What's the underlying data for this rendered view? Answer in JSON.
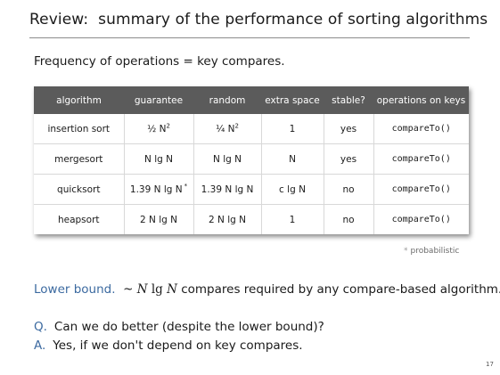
{
  "title": "Review:  summary of the performance of sorting algorithms",
  "intro": "Frequency of operations = key compares.",
  "table": {
    "headers": [
      "algorithm",
      "guarantee",
      "random",
      "extra space",
      "stable?",
      "operations on keys"
    ],
    "rows": [
      [
        "insertion sort",
        "½ N",
        "¼ N",
        "1",
        "yes",
        "compareTo()"
      ],
      [
        "mergesort",
        "N lg N",
        "N lg N",
        "N",
        "yes",
        "compareTo()"
      ],
      [
        "quicksort",
        "1.39 N lg N",
        "1.39 N lg N",
        "c lg N",
        "no",
        "compareTo()"
      ],
      [
        "heapsort",
        "2 N lg N",
        "2 N lg N",
        "1",
        "no",
        "compareTo()"
      ]
    ],
    "sup_two": "2",
    "asterisk": "*"
  },
  "footnote": {
    "mark": "*",
    "text": "probabilistic"
  },
  "lower_bound": {
    "label": "Lower bound.",
    "tilde": "~",
    "n": "N",
    "lg": "lg",
    "n2": "N",
    "rest": " compares required by any compare-based algorithm."
  },
  "q": {
    "key": "Q.",
    "text": "Can we do better (despite the lower bound)?"
  },
  "a": {
    "key": "A.",
    "text": "Yes, if we don't depend on key compares."
  },
  "page_number": "17",
  "colors": {
    "accent": "#3c6aa0",
    "header_bg": "#5b5b5b"
  }
}
